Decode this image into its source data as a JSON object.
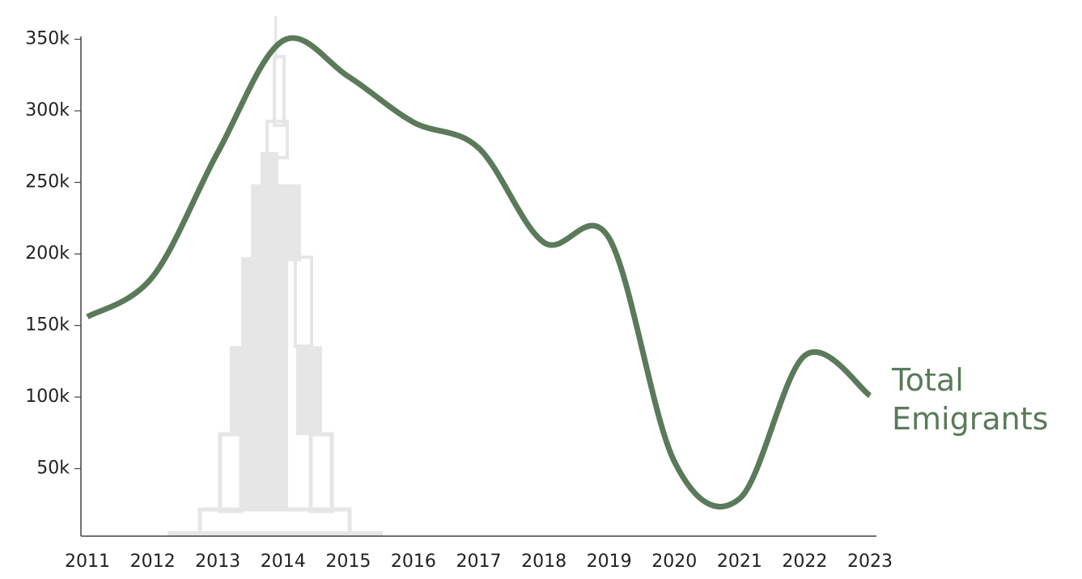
{
  "chart_data": {
    "type": "line",
    "categories": [
      "2011",
      "2012",
      "2013",
      "2014",
      "2015",
      "2016",
      "2017",
      "2018",
      "2019",
      "2020",
      "2021",
      "2022",
      "2023"
    ],
    "series": [
      {
        "name": "Total Emigrants",
        "color": "#5a7a5a",
        "values": [
          156000,
          184000,
          271000,
          349000,
          324000,
          292000,
          274000,
          208000,
          211000,
          55000,
          29000,
          129000,
          101000
        ]
      }
    ],
    "ylim": [
      0,
      352000
    ],
    "yticks": [
      {
        "value": 50000,
        "label": "50k"
      },
      {
        "value": 100000,
        "label": "100k"
      },
      {
        "value": 150000,
        "label": "150k"
      },
      {
        "value": 200000,
        "label": "200k"
      },
      {
        "value": 250000,
        "label": "250k"
      },
      {
        "value": 300000,
        "label": "300k"
      },
      {
        "value": 350000,
        "label": "350k"
      }
    ]
  }
}
